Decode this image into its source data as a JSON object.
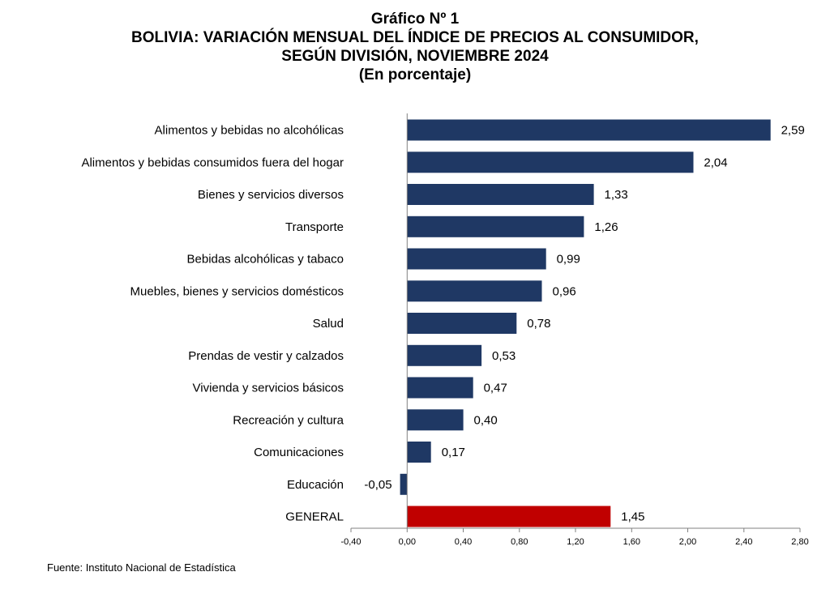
{
  "chart_data": {
    "type": "bar",
    "orientation": "horizontal",
    "title_lines": [
      "Gráfico Nº 1",
      "BOLIVIA: VARIACIÓN MENSUAL DEL ÍNDICE DE PRECIOS AL CONSUMIDOR,",
      "SEGÚN DIVISIÓN, NOVIEMBRE 2024",
      "(En porcentaje)"
    ],
    "categories": [
      "Alimentos y bebidas no alcohólicas",
      "Alimentos y bebidas consumidos fuera del hogar",
      "Bienes y servicios diversos",
      "Transporte",
      "Bebidas alcohólicas y tabaco",
      "Muebles, bienes y servicios domésticos",
      "Salud",
      "Prendas de vestir y calzados",
      "Vivienda y servicios básicos",
      "Recreación y cultura",
      "Comunicaciones",
      "Educación",
      "GENERAL"
    ],
    "values": [
      2.59,
      2.04,
      1.33,
      1.26,
      0.99,
      0.96,
      0.78,
      0.53,
      0.47,
      0.4,
      0.17,
      -0.05,
      1.45
    ],
    "value_labels": [
      "2,59",
      "2,04",
      "1,33",
      "1,26",
      "0,99",
      "0,96",
      "0,78",
      "0,53",
      "0,47",
      "0,40",
      "0,17",
      "-0,05",
      "1,45"
    ],
    "bar_colors": [
      "#1f3864",
      "#1f3864",
      "#1f3864",
      "#1f3864",
      "#1f3864",
      "#1f3864",
      "#1f3864",
      "#1f3864",
      "#1f3864",
      "#1f3864",
      "#1f3864",
      "#1f3864",
      "#c00000"
    ],
    "xlim": [
      -0.4,
      2.8
    ],
    "xticks": [
      -0.4,
      0.0,
      0.4,
      0.8,
      1.2,
      1.6,
      2.0,
      2.4,
      2.8
    ],
    "xtick_labels": [
      "-0,40",
      "0,00",
      "0,40",
      "0,80",
      "1,20",
      "1,60",
      "2,00",
      "2,40",
      "2,80"
    ],
    "grid": false,
    "legend": "none"
  },
  "source": "Fuente: Instituto Nacional de Estadística"
}
